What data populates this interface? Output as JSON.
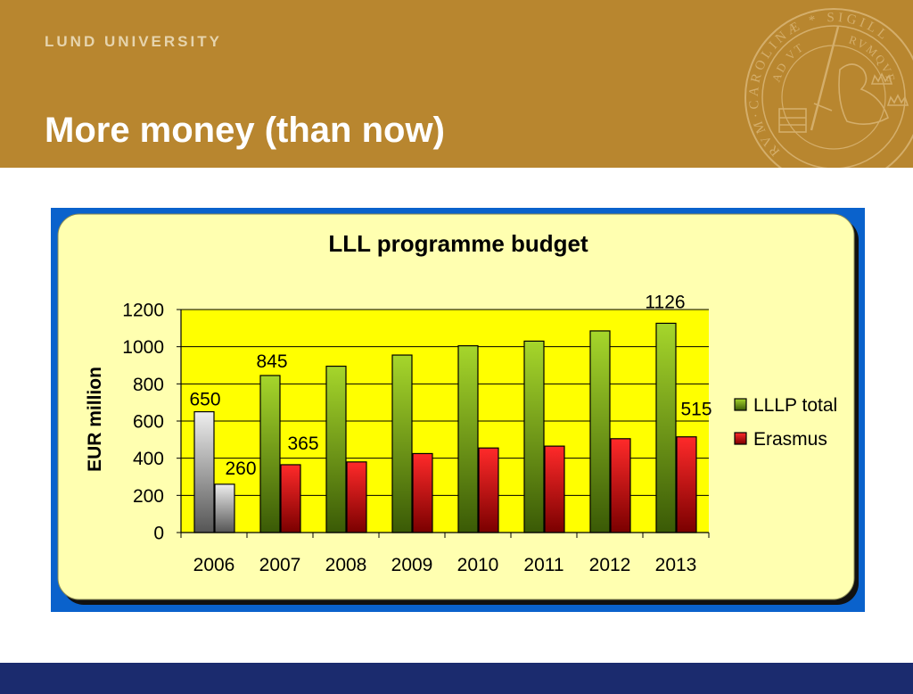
{
  "theme": {
    "header_color": "#b8862f",
    "institution_color": "#e6d4ad",
    "title_color": "#ffffff",
    "footer_color": "#1b2b6e"
  },
  "header": {
    "institution": "LUND UNIVERSITY",
    "title": "More money (than now)"
  },
  "seal": {
    "outer_text": "RVM·CAROLINÆ * SIGILL",
    "inner_text_left": "AD VT",
    "inner_text_right": "RVMQVE",
    "icon": "lion-with-sword-emblem"
  },
  "chart_data": {
    "type": "bar",
    "title": "LLL programme budget",
    "xlabel": "",
    "ylabel": "EUR million",
    "categories": [
      "2006",
      "2007",
      "2008",
      "2009",
      "2010",
      "2011",
      "2012",
      "2013"
    ],
    "ylim": [
      0,
      1200
    ],
    "yticks": [
      "0",
      "200",
      "400",
      "600",
      "800",
      "1000",
      "1200"
    ],
    "grid": true,
    "legend": "right",
    "series": [
      {
        "name": "LLLP total",
        "values": [
          650,
          845,
          895,
          955,
          1005,
          1030,
          1085,
          1126
        ],
        "labels": [
          "650",
          "845",
          null,
          null,
          null,
          null,
          null,
          "1126"
        ],
        "gradient": [
          "#a6d62b",
          "#3a5a06"
        ]
      },
      {
        "name": "Erasmus",
        "values": [
          260,
          365,
          380,
          425,
          455,
          465,
          505,
          515
        ],
        "labels": [
          "260",
          "365",
          null,
          null,
          null,
          null,
          null,
          "515"
        ],
        "gradient": [
          "#ff2a2a",
          "#7a0000"
        ]
      }
    ],
    "category_gradients": [
      [
        "#eeeeee",
        "#555555"
      ],
      null,
      null,
      null,
      null,
      null,
      null,
      null
    ],
    "colors": {
      "frame": "#0a62cc",
      "panel": "#ffffb0",
      "plot_area": "#ffff00",
      "shadow": "#111111"
    }
  }
}
